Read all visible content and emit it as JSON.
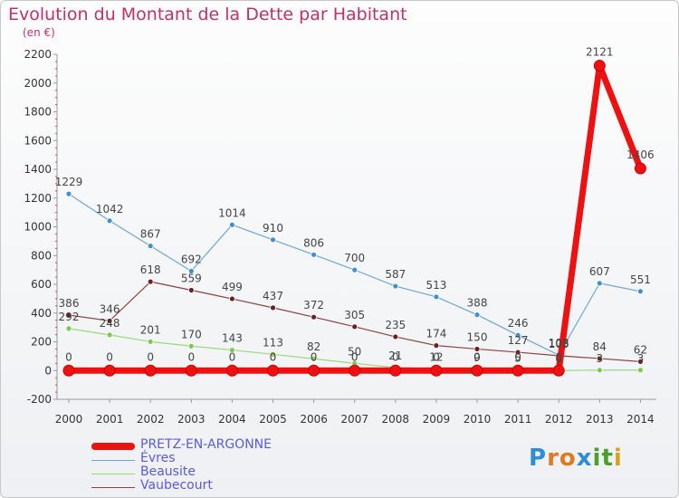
{
  "header": {
    "title": "Evolution du Montant de la Dette par Habitant",
    "subtitle": "(en €)"
  },
  "logo": {
    "letters": [
      "P",
      "r",
      "o",
      "x",
      "i",
      "t",
      "i"
    ],
    "colors": [
      "#2c8fd6",
      "#e07a1f",
      "#e07a1f",
      "#2c8fd6",
      "#49a02c",
      "#49a02c",
      "#d6a21c"
    ]
  },
  "chart_data": {
    "type": "line",
    "title": "Evolution du Montant de la Dette par Habitant",
    "ylabel": "(en €)",
    "ylim": [
      -200,
      2200
    ],
    "yticks": [
      -200,
      0,
      200,
      400,
      600,
      800,
      1000,
      1200,
      1400,
      1600,
      1800,
      2000,
      2200
    ],
    "categories": [
      "2000",
      "2001",
      "2002",
      "2003",
      "2004",
      "2005",
      "2006",
      "2007",
      "2008",
      "2009",
      "2010",
      "2011",
      "2012",
      "2013",
      "2014"
    ],
    "series": [
      {
        "name": "PRETZ-EN-ARGONNE",
        "color": "#ee1111",
        "marker": "#ee1111",
        "values": [
          0,
          0,
          0,
          0,
          0,
          0,
          0,
          0,
          0,
          0,
          0,
          0,
          0,
          2121,
          1406
        ],
        "labels": [
          "0",
          "0",
          "0",
          "0",
          "0",
          "0",
          "0",
          "0",
          "0",
          "0",
          "0",
          "0",
          "0",
          "2121",
          "1406"
        ]
      },
      {
        "name": "Évres",
        "color": "#6fa5d8",
        "marker": "#3f8fd2",
        "values": [
          1229,
          1042,
          867,
          692,
          1014,
          910,
          806,
          700,
          587,
          513,
          388,
          246,
          108,
          607,
          551
        ],
        "labels": [
          "1229",
          "1042",
          "867",
          "692",
          "1014",
          "910",
          "806",
          "700",
          "587",
          "513",
          "388",
          "246",
          "108",
          "607",
          "551"
        ]
      },
      {
        "name": "Beausite",
        "color": "#99d97a",
        "marker": "#7ccb4d",
        "values": [
          292,
          248,
          201,
          170,
          143,
          113,
          82,
          50,
          21,
          12,
          9,
          5,
          0,
          3,
          3
        ],
        "labels": [
          "292",
          "248",
          "201",
          "170",
          "143",
          "113",
          "82",
          "50",
          "21",
          "12",
          "9",
          "5",
          "0",
          "3",
          "3"
        ]
      },
      {
        "name": "Vaubecourt",
        "color": "#8b4343",
        "marker": "#6e1f1f",
        "values": [
          386,
          346,
          618,
          559,
          499,
          437,
          372,
          305,
          235,
          174,
          150,
          127,
          103,
          84,
          62
        ],
        "labels": [
          "386",
          "346",
          "618",
          "559",
          "499",
          "437",
          "372",
          "305",
          "235",
          "174",
          "150",
          "127",
          "103",
          "84",
          "62"
        ]
      }
    ]
  }
}
